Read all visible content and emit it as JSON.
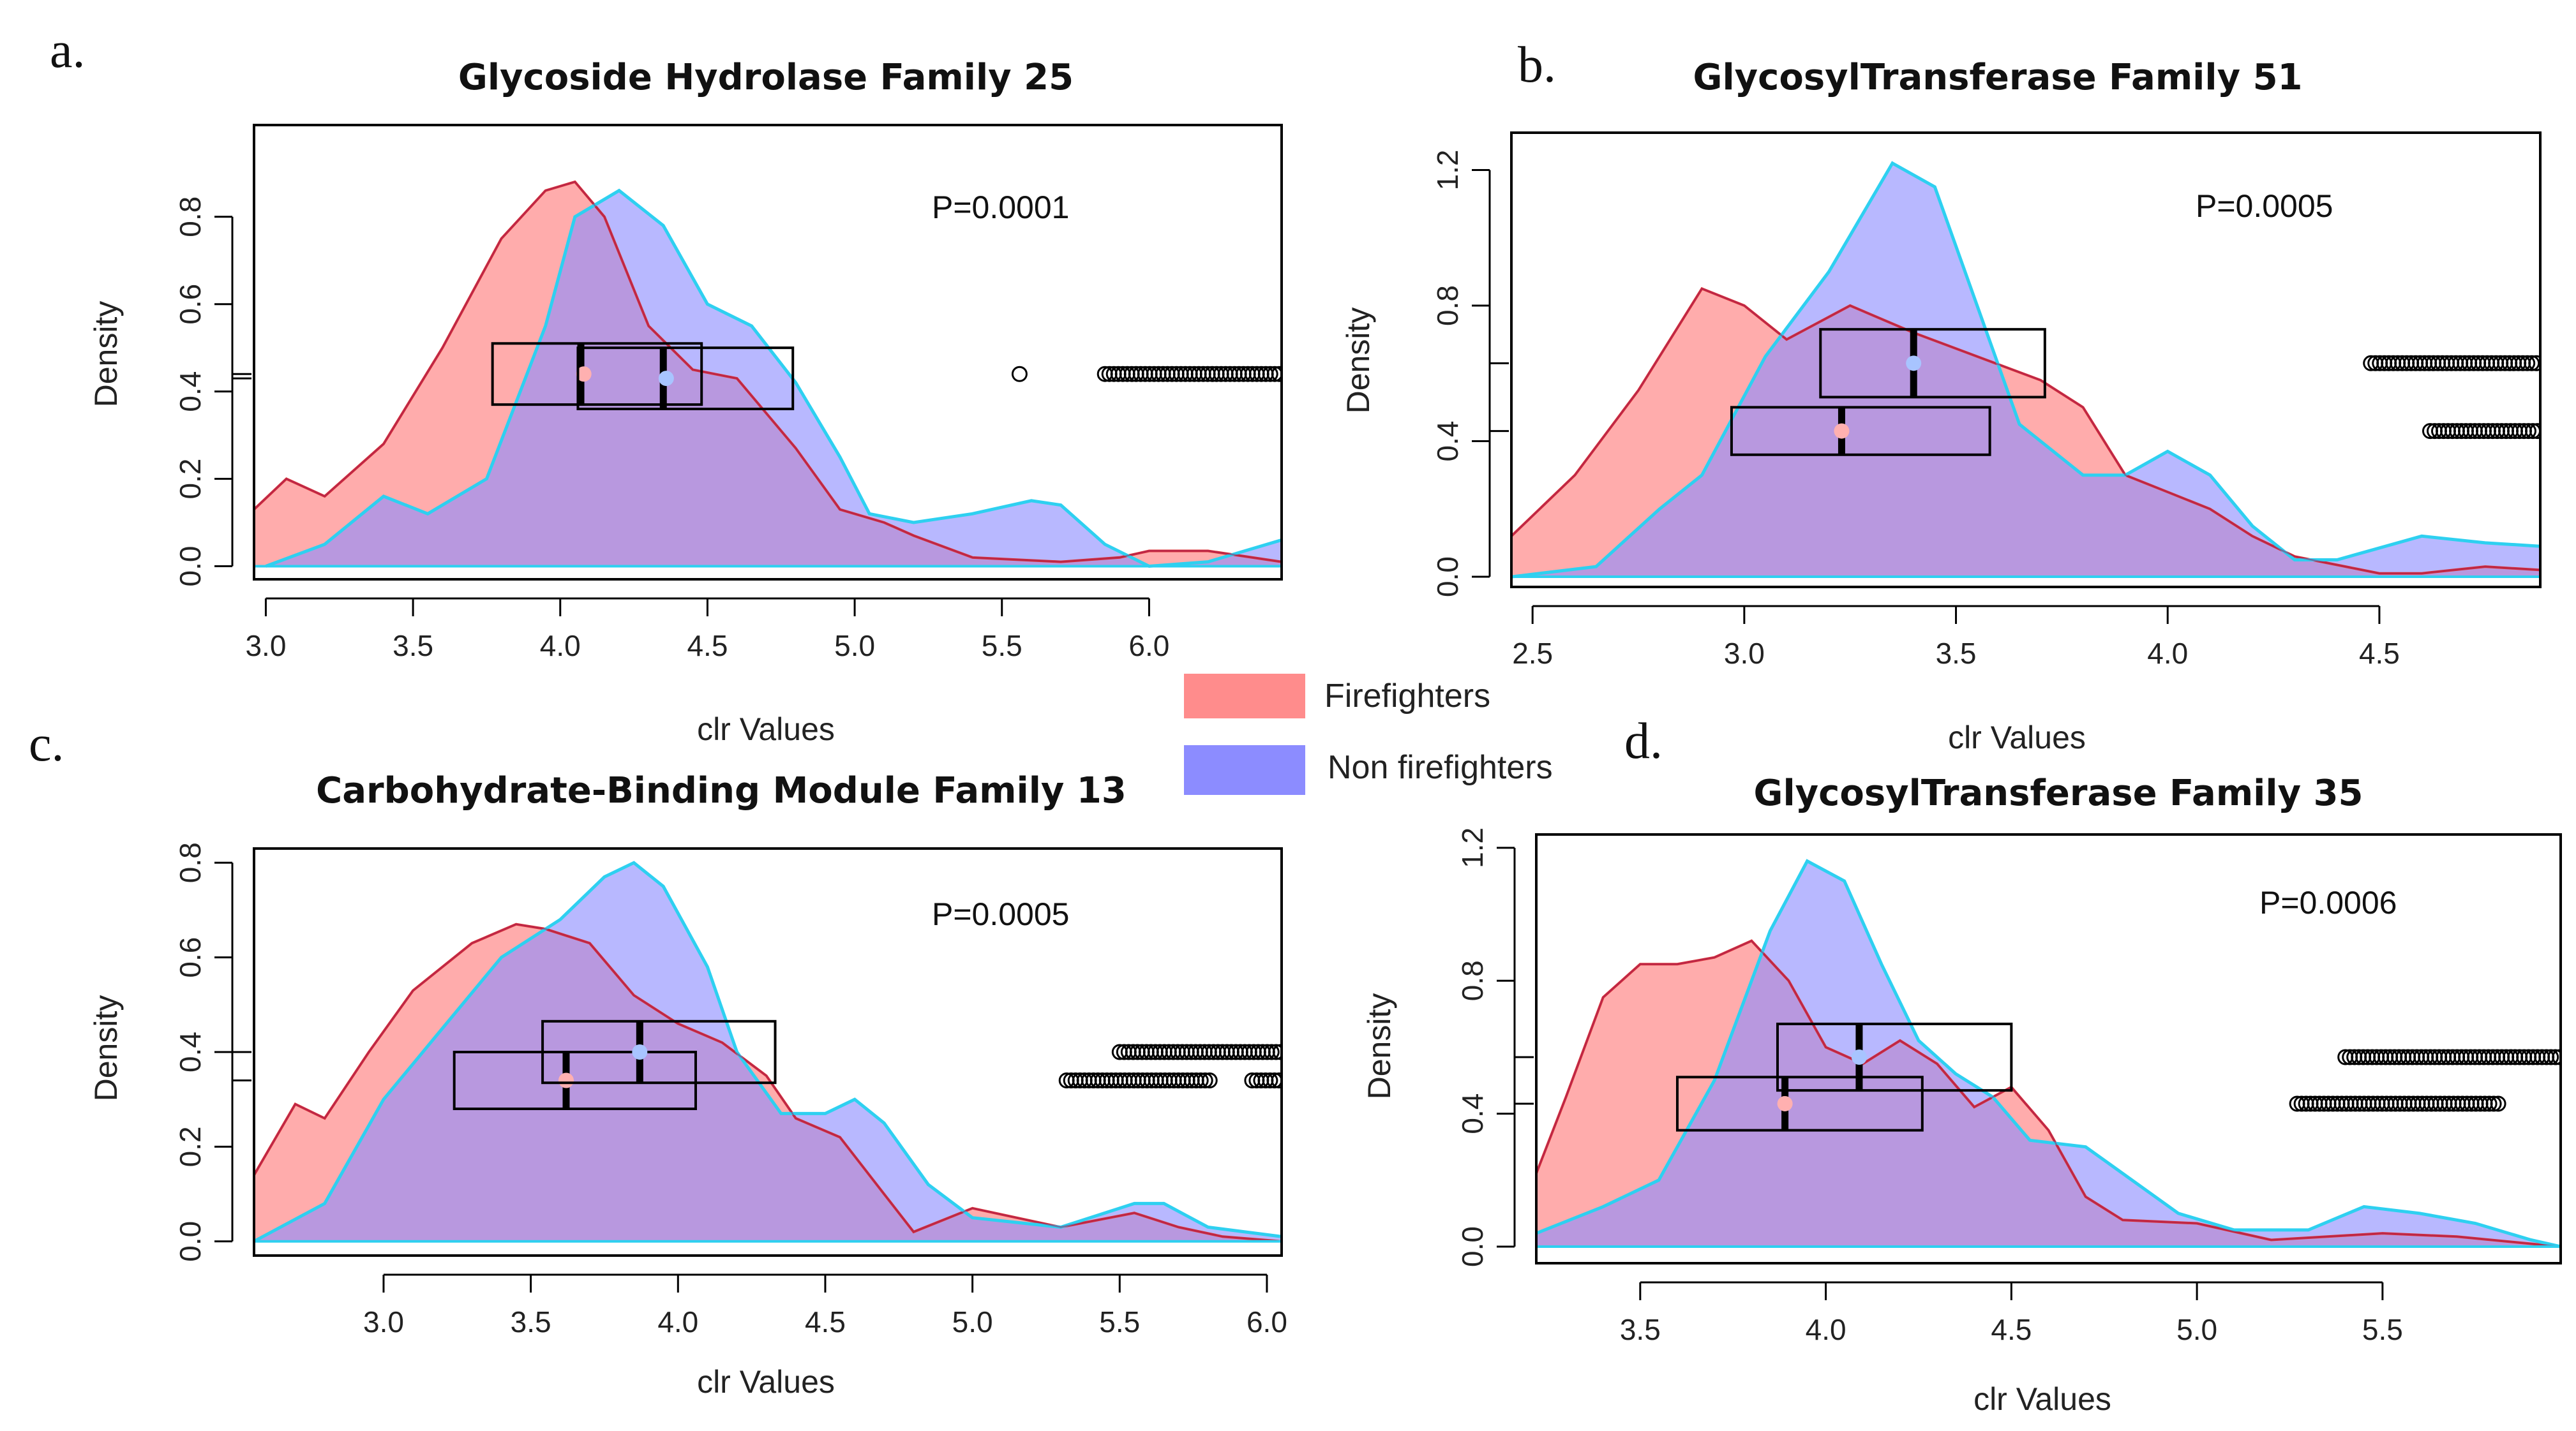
{
  "legend": {
    "items": [
      {
        "label": "Firefighters",
        "color": "#FF8C8C"
      },
      {
        "label": "Non firefighters",
        "color": "#8C8CFF"
      }
    ]
  },
  "colors": {
    "ff_fill": "#FF8C8C",
    "ff_line": "#E03030",
    "nf_fill": "#8C8CFF",
    "nf_line": "#2ED0F0",
    "overlap_line": "#9A2060",
    "ff_dot": "#FFB0B0",
    "nf_dot": "#A8C4FF"
  },
  "chart_data": [
    {
      "panel_label": "a.",
      "type": "area",
      "title": "Glycoside Hydrolase Family 25",
      "xlabel": "clr Values",
      "ylabel": "Density",
      "xlim": [
        2.96,
        6.45
      ],
      "ylim": [
        -0.03,
        1.01
      ],
      "xticks": [
        3.0,
        3.5,
        4.0,
        4.5,
        5.0,
        5.5,
        6.0
      ],
      "xtick_labels": [
        "3.0",
        "3.5",
        "4.0",
        "4.5",
        "5.0",
        "5.5",
        "6.0"
      ],
      "yticks": [
        0.0,
        0.2,
        0.4,
        0.6,
        0.8
      ],
      "ytick_labels": [
        "0.0",
        "0.2",
        "0.4",
        "0.6",
        "0.8"
      ],
      "p_value": "P=0.0001",
      "series": [
        {
          "name": "Firefighters",
          "density": [
            [
              2.96,
              0.13
            ],
            [
              3.07,
              0.2
            ],
            [
              3.2,
              0.16
            ],
            [
              3.4,
              0.28
            ],
            [
              3.6,
              0.5
            ],
            [
              3.8,
              0.75
            ],
            [
              3.95,
              0.86
            ],
            [
              4.05,
              0.88
            ],
            [
              4.15,
              0.8
            ],
            [
              4.3,
              0.55
            ],
            [
              4.45,
              0.45
            ],
            [
              4.6,
              0.43
            ],
            [
              4.8,
              0.27
            ],
            [
              4.95,
              0.13
            ],
            [
              5.1,
              0.1
            ],
            [
              5.2,
              0.07
            ],
            [
              5.4,
              0.02
            ],
            [
              5.7,
              0.01
            ],
            [
              5.9,
              0.02
            ],
            [
              6.0,
              0.035
            ],
            [
              6.2,
              0.035
            ],
            [
              6.45,
              0.01
            ]
          ],
          "box": {
            "q1": 3.77,
            "median": 4.07,
            "q3": 4.48,
            "mean": 4.08,
            "y": 0.44,
            "halfheight": 0.07
          },
          "outliers": [
            5.56
          ]
        },
        {
          "name": "Non firefighters",
          "density": [
            [
              3.0,
              0.0
            ],
            [
              3.2,
              0.05
            ],
            [
              3.4,
              0.16
            ],
            [
              3.55,
              0.12
            ],
            [
              3.75,
              0.2
            ],
            [
              3.95,
              0.55
            ],
            [
              4.05,
              0.8
            ],
            [
              4.2,
              0.86
            ],
            [
              4.35,
              0.78
            ],
            [
              4.5,
              0.6
            ],
            [
              4.65,
              0.55
            ],
            [
              4.8,
              0.42
            ],
            [
              4.95,
              0.25
            ],
            [
              5.05,
              0.12
            ],
            [
              5.2,
              0.1
            ],
            [
              5.4,
              0.12
            ],
            [
              5.6,
              0.15
            ],
            [
              5.7,
              0.14
            ],
            [
              5.85,
              0.05
            ],
            [
              6.0,
              0.0
            ],
            [
              6.2,
              0.01
            ],
            [
              6.45,
              0.06
            ]
          ],
          "box": {
            "q1": 4.06,
            "median": 4.35,
            "q3": 4.79,
            "mean": 4.36,
            "y": 0.43,
            "halfheight": 0.07
          },
          "outliers": []
        }
      ],
      "outlier_runs": [
        {
          "x_from": 5.85,
          "x_to": 6.45,
          "y": 0.44
        }
      ]
    },
    {
      "panel_label": "b.",
      "type": "area",
      "title": "GlycosylTransferase Family 51",
      "xlabel": "clr Values",
      "ylabel": "Density",
      "xlim": [
        2.45,
        4.88
      ],
      "ylim": [
        -0.03,
        1.31
      ],
      "xticks": [
        2.5,
        3.0,
        3.5,
        4.0,
        4.5
      ],
      "xtick_labels": [
        "2.5",
        "3.0",
        "3.5",
        "4.0",
        "4.5"
      ],
      "yticks": [
        0.0,
        0.4,
        0.8,
        1.2
      ],
      "ytick_labels": [
        "0.0",
        "0.4",
        "0.8",
        "1.2"
      ],
      "p_value": "P=0.0005",
      "series": [
        {
          "name": "Firefighters",
          "density": [
            [
              2.45,
              0.12
            ],
            [
              2.6,
              0.3
            ],
            [
              2.75,
              0.55
            ],
            [
              2.9,
              0.85
            ],
            [
              3.0,
              0.8
            ],
            [
              3.1,
              0.7
            ],
            [
              3.25,
              0.8
            ],
            [
              3.4,
              0.72
            ],
            [
              3.55,
              0.65
            ],
            [
              3.7,
              0.58
            ],
            [
              3.8,
              0.5
            ],
            [
              3.9,
              0.3
            ],
            [
              4.0,
              0.25
            ],
            [
              4.1,
              0.2
            ],
            [
              4.2,
              0.12
            ],
            [
              4.3,
              0.06
            ],
            [
              4.5,
              0.01
            ],
            [
              4.6,
              0.01
            ],
            [
              4.75,
              0.03
            ],
            [
              4.88,
              0.02
            ]
          ],
          "box": {
            "q1": 2.97,
            "median": 3.23,
            "q3": 3.58,
            "mean": 3.23,
            "y": 0.43,
            "halfheight": 0.07
          },
          "outliers": []
        },
        {
          "name": "Non firefighters",
          "density": [
            [
              2.45,
              0.0
            ],
            [
              2.65,
              0.03
            ],
            [
              2.8,
              0.2
            ],
            [
              2.9,
              0.3
            ],
            [
              3.05,
              0.65
            ],
            [
              3.2,
              0.9
            ],
            [
              3.35,
              1.22
            ],
            [
              3.45,
              1.15
            ],
            [
              3.55,
              0.8
            ],
            [
              3.65,
              0.45
            ],
            [
              3.8,
              0.3
            ],
            [
              3.9,
              0.3
            ],
            [
              4.0,
              0.37
            ],
            [
              4.1,
              0.3
            ],
            [
              4.2,
              0.15
            ],
            [
              4.3,
              0.05
            ],
            [
              4.4,
              0.05
            ],
            [
              4.6,
              0.12
            ],
            [
              4.75,
              0.1
            ],
            [
              4.88,
              0.09
            ]
          ],
          "box": {
            "q1": 3.18,
            "median": 3.4,
            "q3": 3.71,
            "mean": 3.4,
            "y": 0.63,
            "halfheight": 0.1
          },
          "outliers": []
        }
      ],
      "outlier_runs": [
        {
          "x_from": 4.48,
          "x_to": 4.88,
          "y": 0.63
        },
        {
          "x_from": 4.62,
          "x_to": 4.88,
          "y": 0.43
        }
      ]
    },
    {
      "panel_label": "c.",
      "type": "area",
      "title": "Carbohydrate-Binding Module Family 13",
      "xlabel": "clr Values",
      "ylabel": "Density",
      "xlim": [
        2.56,
        6.05
      ],
      "ylim": [
        -0.03,
        0.83
      ],
      "xticks": [
        3.0,
        3.5,
        4.0,
        4.5,
        5.0,
        5.5,
        6.0
      ],
      "xtick_labels": [
        "3.0",
        "3.5",
        "4.0",
        "4.5",
        "5.0",
        "5.5",
        "6.0"
      ],
      "yticks": [
        0.0,
        0.2,
        0.4,
        0.6,
        0.8
      ],
      "ytick_labels": [
        "0.0",
        "0.2",
        "0.4",
        "0.6",
        "0.8"
      ],
      "p_value": "P=0.0005",
      "series": [
        {
          "name": "Firefighters",
          "density": [
            [
              2.56,
              0.14
            ],
            [
              2.7,
              0.29
            ],
            [
              2.8,
              0.26
            ],
            [
              2.95,
              0.4
            ],
            [
              3.1,
              0.53
            ],
            [
              3.3,
              0.63
            ],
            [
              3.45,
              0.67
            ],
            [
              3.55,
              0.66
            ],
            [
              3.7,
              0.63
            ],
            [
              3.85,
              0.52
            ],
            [
              4.0,
              0.46
            ],
            [
              4.15,
              0.42
            ],
            [
              4.3,
              0.35
            ],
            [
              4.4,
              0.26
            ],
            [
              4.55,
              0.22
            ],
            [
              4.7,
              0.1
            ],
            [
              4.8,
              0.02
            ],
            [
              5.0,
              0.07
            ],
            [
              5.15,
              0.05
            ],
            [
              5.3,
              0.03
            ],
            [
              5.55,
              0.06
            ],
            [
              5.7,
              0.03
            ],
            [
              5.85,
              0.01
            ],
            [
              6.05,
              0.0
            ]
          ],
          "box": {
            "q1": 3.24,
            "median": 3.62,
            "q3": 4.06,
            "mean": 3.62,
            "y": 0.34,
            "halfheight": 0.06
          },
          "outliers": []
        },
        {
          "name": "Non firefighters",
          "density": [
            [
              2.56,
              0.0
            ],
            [
              2.8,
              0.08
            ],
            [
              3.0,
              0.3
            ],
            [
              3.2,
              0.45
            ],
            [
              3.4,
              0.6
            ],
            [
              3.6,
              0.68
            ],
            [
              3.75,
              0.77
            ],
            [
              3.85,
              0.8
            ],
            [
              3.95,
              0.75
            ],
            [
              4.1,
              0.58
            ],
            [
              4.2,
              0.4
            ],
            [
              4.35,
              0.27
            ],
            [
              4.5,
              0.27
            ],
            [
              4.6,
              0.3
            ],
            [
              4.7,
              0.25
            ],
            [
              4.85,
              0.12
            ],
            [
              5.0,
              0.05
            ],
            [
              5.3,
              0.03
            ],
            [
              5.55,
              0.08
            ],
            [
              5.65,
              0.08
            ],
            [
              5.8,
              0.03
            ],
            [
              6.05,
              0.01
            ]
          ],
          "box": {
            "q1": 3.54,
            "median": 3.87,
            "q3": 4.33,
            "mean": 3.87,
            "y": 0.4,
            "halfheight": 0.065
          },
          "outliers": []
        }
      ],
      "outlier_runs": [
        {
          "x_from": 5.5,
          "x_to": 6.05,
          "y": 0.4
        },
        {
          "x_from": 5.32,
          "x_to": 5.82,
          "y": 0.34
        },
        {
          "x_from": 5.95,
          "x_to": 6.05,
          "y": 0.34
        }
      ]
    },
    {
      "panel_label": "d.",
      "type": "area",
      "title": "GlycosylTransferase Family 35",
      "xlabel": "clr Values",
      "ylabel": "Density",
      "xlim": [
        3.22,
        5.98
      ],
      "ylim": [
        -0.05,
        1.24
      ],
      "xticks": [
        3.5,
        4.0,
        4.5,
        5.0,
        5.5
      ],
      "xtick_labels": [
        "3.5",
        "4.0",
        "4.5",
        "5.0",
        "5.5"
      ],
      "yticks": [
        0.0,
        0.4,
        0.8,
        1.2
      ],
      "ytick_labels": [
        "0.0",
        "0.4",
        "0.8",
        "1.2"
      ],
      "p_value": "P=0.0006",
      "series": [
        {
          "name": "Firefighters",
          "density": [
            [
              3.22,
              0.22
            ],
            [
              3.3,
              0.45
            ],
            [
              3.4,
              0.75
            ],
            [
              3.5,
              0.85
            ],
            [
              3.6,
              0.85
            ],
            [
              3.7,
              0.87
            ],
            [
              3.8,
              0.92
            ],
            [
              3.9,
              0.8
            ],
            [
              4.0,
              0.6
            ],
            [
              4.1,
              0.55
            ],
            [
              4.2,
              0.62
            ],
            [
              4.3,
              0.55
            ],
            [
              4.4,
              0.42
            ],
            [
              4.5,
              0.48
            ],
            [
              4.6,
              0.35
            ],
            [
              4.7,
              0.15
            ],
            [
              4.8,
              0.08
            ],
            [
              5.0,
              0.07
            ],
            [
              5.2,
              0.02
            ],
            [
              5.5,
              0.04
            ],
            [
              5.7,
              0.03
            ],
            [
              5.98,
              0.0
            ]
          ],
          "box": {
            "q1": 3.6,
            "median": 3.89,
            "q3": 4.26,
            "mean": 3.89,
            "y": 0.43,
            "halfheight": 0.08
          },
          "outliers": []
        },
        {
          "name": "Non firefighters",
          "density": [
            [
              3.22,
              0.04
            ],
            [
              3.4,
              0.12
            ],
            [
              3.55,
              0.2
            ],
            [
              3.7,
              0.5
            ],
            [
              3.85,
              0.95
            ],
            [
              3.95,
              1.16
            ],
            [
              4.05,
              1.1
            ],
            [
              4.15,
              0.85
            ],
            [
              4.25,
              0.62
            ],
            [
              4.35,
              0.52
            ],
            [
              4.45,
              0.45
            ],
            [
              4.55,
              0.32
            ],
            [
              4.7,
              0.3
            ],
            [
              4.8,
              0.22
            ],
            [
              4.95,
              0.1
            ],
            [
              5.1,
              0.05
            ],
            [
              5.3,
              0.05
            ],
            [
              5.45,
              0.12
            ],
            [
              5.6,
              0.1
            ],
            [
              5.75,
              0.07
            ],
            [
              5.9,
              0.02
            ],
            [
              5.98,
              0.0
            ]
          ],
          "box": {
            "q1": 3.87,
            "median": 4.09,
            "q3": 4.5,
            "mean": 4.09,
            "y": 0.57,
            "halfheight": 0.1
          },
          "outliers": []
        }
      ],
      "outlier_runs": [
        {
          "x_from": 5.4,
          "x_to": 5.98,
          "y": 0.57
        },
        {
          "x_from": 5.27,
          "x_to": 5.82,
          "y": 0.43
        }
      ]
    }
  ]
}
